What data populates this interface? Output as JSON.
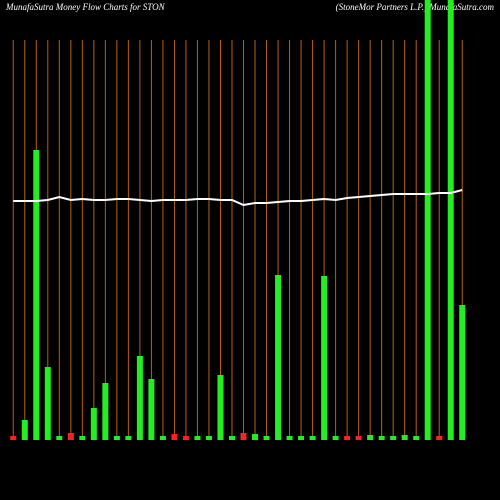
{
  "chart_data": {
    "type": "bar",
    "title": "MunafaSutra  Money Flow  Charts for STON",
    "subtitle": "(StoneMor Partners L.P.) MunafaSutra.com",
    "categories": [
      null,
      null,
      null,
      null,
      null,
      null,
      null,
      null,
      null,
      null,
      null,
      null,
      null,
      null,
      null,
      null,
      null,
      null,
      null,
      null,
      null,
      null,
      null,
      null,
      null,
      null,
      null,
      null,
      null,
      null,
      null,
      null,
      null,
      null,
      null,
      null,
      null,
      null,
      null,
      null
    ],
    "values": [
      4,
      20,
      290,
      73,
      4,
      7,
      4,
      32,
      57,
      4,
      4,
      84,
      61,
      4,
      6,
      4,
      4,
      4,
      65,
      4,
      7,
      6,
      4,
      165,
      4,
      4,
      4,
      164,
      4,
      4,
      4,
      5,
      4,
      4,
      5,
      4,
      440,
      4,
      440,
      135
    ],
    "colors": [
      "#ff2020",
      "#22ee22",
      "#22ee22",
      "#22ee22",
      "#22ee22",
      "#ff2020",
      "#22ee22",
      "#22ee22",
      "#22ee22",
      "#22ee22",
      "#22ee22",
      "#22ee22",
      "#22ee22",
      "#22ee22",
      "#ff2020",
      "#ff2020",
      "#22ee22",
      "#22ee22",
      "#22ee22",
      "#22ee22",
      "#ff2020",
      "#22ee22",
      "#22ee22",
      "#22ee22",
      "#22ee22",
      "#22ee22",
      "#22ee22",
      "#22ee22",
      "#22ee22",
      "#ff2020",
      "#ff2020",
      "#22ee22",
      "#22ee22",
      "#22ee22",
      "#22ee22",
      "#22ee22",
      "#22ee22",
      "#ff2020",
      "#22ee22",
      "#22ee22"
    ],
    "line_values": [
      239,
      239,
      239,
      240,
      243,
      240,
      241,
      240,
      240,
      241,
      241,
      240,
      239,
      240,
      240,
      240,
      241,
      241,
      240,
      240,
      235,
      237,
      237,
      238,
      239,
      239,
      240,
      241,
      240,
      242,
      243,
      244,
      245,
      246,
      246,
      246,
      246,
      247,
      247,
      250
    ],
    "line_color": "#ffffff",
    "grid_color": "#b8600a",
    "ylim": [
      0,
      440
    ],
    "grid": true
  }
}
